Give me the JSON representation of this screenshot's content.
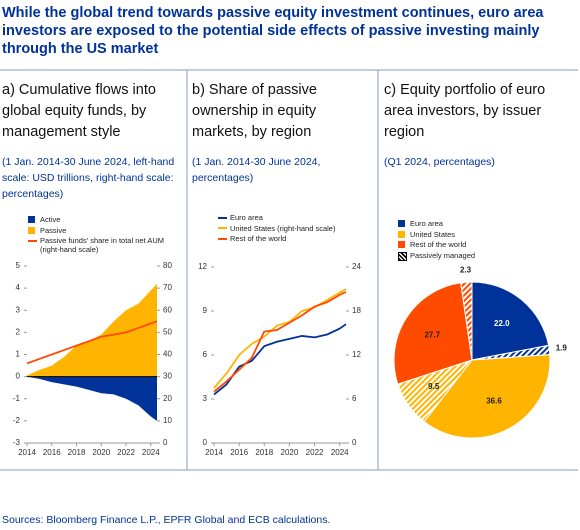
{
  "title": "While the global trend towards passive equity investment continues, euro area investors are exposed to the potential side effects of passive investing mainly through the US market",
  "source": "Sources: Bloomberg Finance L.P., EPFR Global and ECB calculations.",
  "chart_data": [
    {
      "type": "area",
      "title": "a) Cumulative flows into global equity funds, by management style",
      "subtitle": "(1 Jan. 2014-30 June 2024, left-hand scale: USD trillions, right-hand scale: percentages)",
      "x": [
        2014,
        2015,
        2016,
        2017,
        2018,
        2019,
        2020,
        2021,
        2022,
        2023,
        2024,
        2024.5
      ],
      "xlim": [
        2014,
        2024.5
      ],
      "xticks": [
        2014,
        2016,
        2018,
        2020,
        2022,
        2024
      ],
      "ylim": [
        -3,
        5
      ],
      "yticks": [
        -3,
        -2,
        -1,
        0,
        1,
        2,
        3,
        4,
        5
      ],
      "y2lim": [
        0,
        80
      ],
      "y2ticks": [
        0,
        10,
        20,
        30,
        40,
        50,
        60,
        70,
        80
      ],
      "series": [
        {
          "name": "Active",
          "type": "area",
          "color": "#003299",
          "values": [
            0,
            -0.1,
            -0.25,
            -0.35,
            -0.45,
            -0.6,
            -0.75,
            -0.8,
            -1.0,
            -1.3,
            -1.8,
            -2.0
          ]
        },
        {
          "name": "Passive",
          "type": "area",
          "color": "#ffb400",
          "values": [
            0.05,
            0.3,
            0.5,
            0.9,
            1.4,
            1.6,
            1.9,
            2.5,
            3.0,
            3.3,
            3.9,
            4.2
          ]
        },
        {
          "name": "Passive funds' share in total net AUM (right-hand scale)",
          "type": "line",
          "axis": "y2",
          "color": "#ff4b00",
          "values": [
            36,
            38,
            40,
            42,
            44,
            46,
            48,
            49,
            50,
            52,
            54,
            55
          ]
        }
      ]
    },
    {
      "type": "line",
      "title": "b) Share of passive ownership in equity markets, by region",
      "subtitle": "(1 Jan. 2014-30 June 2024, percentages)",
      "x": [
        2014,
        2015,
        2016,
        2017,
        2018,
        2019,
        2020,
        2021,
        2022,
        2023,
        2024,
        2024.5
      ],
      "xlim": [
        2014,
        2024.5
      ],
      "xticks": [
        2014,
        2016,
        2018,
        2020,
        2022,
        2024
      ],
      "ylim": [
        0,
        12
      ],
      "yticks": [
        0,
        3,
        6,
        9,
        12
      ],
      "y2lim": [
        0,
        24
      ],
      "y2ticks": [
        0,
        6,
        12,
        18,
        24
      ],
      "series": [
        {
          "name": "Euro area",
          "type": "line",
          "color": "#003299",
          "values": [
            3.3,
            4.0,
            5.2,
            5.6,
            6.6,
            6.9,
            7.1,
            7.3,
            7.2,
            7.4,
            7.8,
            8.1
          ]
        },
        {
          "name": "United States (right-hand scale)",
          "type": "line",
          "axis": "y2",
          "color": "#ffb400",
          "values": [
            7.5,
            9.5,
            12,
            13.5,
            14.5,
            16,
            16.5,
            18,
            18.5,
            19.5,
            20.5,
            21
          ]
        },
        {
          "name": "Rest of the world",
          "type": "line",
          "color": "#ff4b00",
          "values": [
            3.5,
            4.2,
            5.0,
            5.8,
            7.6,
            7.7,
            8.2,
            8.7,
            9.3,
            9.6,
            10.1,
            10.3
          ]
        }
      ]
    },
    {
      "type": "pie",
      "title": "c) Equity portfolio of euro area investors, by issuer region",
      "subtitle": "(Q1 2024, percentages)",
      "legend": [
        {
          "name": "Euro area",
          "color": "#003299",
          "hatched": false
        },
        {
          "name": "United States",
          "color": "#ffb400",
          "hatched": false
        },
        {
          "name": "Rest of the world",
          "color": "#ff4b00",
          "hatched": false
        },
        {
          "name": "Passively managed",
          "color": "#000000",
          "hatched": true
        }
      ],
      "values": [
        22.0,
        1.9,
        36.6,
        9.5,
        27.7,
        2.3
      ],
      "value_labels": [
        "22.0",
        "1.9",
        "36.6",
        "9.5",
        "27.7",
        "2.3"
      ],
      "colors": [
        "#003299",
        "#003299",
        "#ffb400",
        "#ffb400",
        "#ff4b00",
        "#ff4b00"
      ],
      "hatched": [
        false,
        true,
        false,
        true,
        false,
        true
      ]
    }
  ]
}
